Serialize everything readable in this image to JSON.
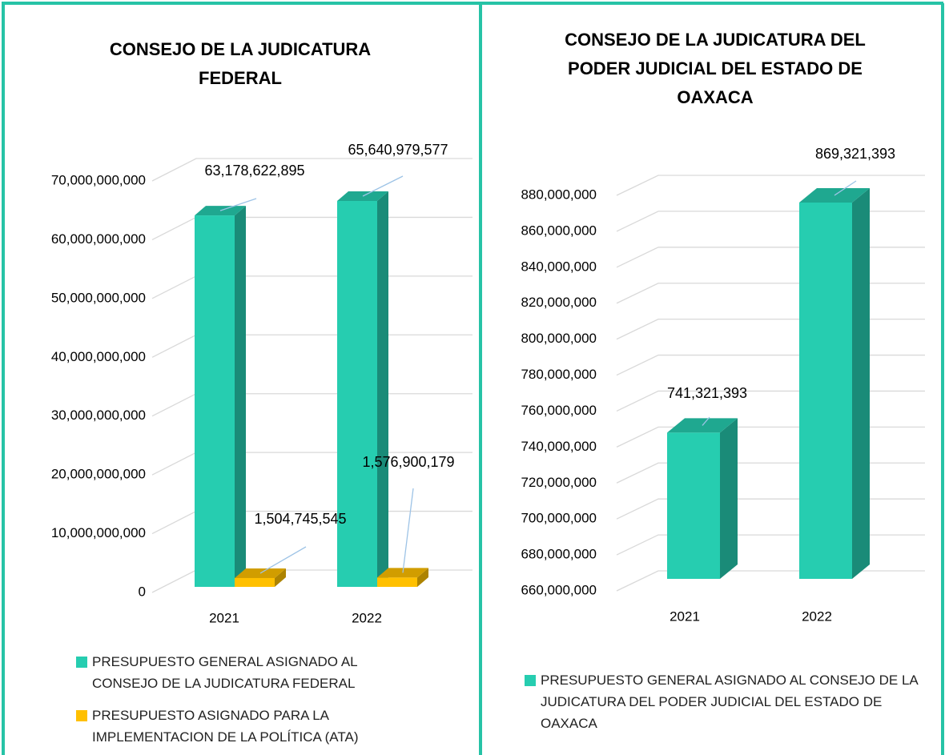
{
  "chart_data": [
    {
      "type": "bar",
      "title": "CONSEJO DE LA JUDICATURA FEDERAL",
      "categories": [
        "2021",
        "2022"
      ],
      "series": [
        {
          "name": "PRESUPUESTO GENERAL ASIGNADO AL CONSEJO DE LA JUDICATURA FEDERAL",
          "color": "#26cdb0",
          "values": [
            63178622895,
            65640979577
          ],
          "value_labels": [
            "63,178,622,895",
            "65,640,979,577"
          ]
        },
        {
          "name": "PRESUPUESTO ASIGNADO PARA LA IMPLEMENTACION DE LA POLÍTICA (ATA)",
          "color": "#ffc000",
          "values": [
            1504745545,
            1576900179
          ],
          "value_labels": [
            "1,504,745,545",
            "1,576,900,179"
          ]
        }
      ],
      "ylim": [
        0,
        70000000000
      ],
      "yticks": [
        0,
        {
          "value": 10000000000,
          "label": "10,000,000,000"
        },
        {
          "value": 20000000000,
          "label": "20,000,000,000"
        },
        {
          "value": 30000000000,
          "label": "30,000,000,000"
        },
        {
          "value": 40000000000,
          "label": "40,000,000,000"
        },
        {
          "value": 50000000000,
          "label": "50,000,000,000"
        },
        {
          "value": 60000000000,
          "label": "60,000,000,000"
        },
        {
          "value": 70000000000,
          "label": "70,000,000,000"
        }
      ],
      "grid": true,
      "legend": "bottom"
    },
    {
      "type": "bar",
      "title": "CONSEJO DE LA JUDICATURA DEL PODER JUDICIAL DEL ESTADO DE OAXACA",
      "categories": [
        "2021",
        "2022"
      ],
      "series": [
        {
          "name": "PRESUPUESTO GENERAL ASIGNADO AL CONSEJO DE LA JUDICATURA DEL PODER JUDICIAL DEL ESTADO DE OAXACA",
          "color": "#26cdb0",
          "values": [
            741321393,
            869321393
          ],
          "value_labels": [
            "741,321,393",
            "869,321,393"
          ]
        }
      ],
      "ylim": [
        660000000,
        880000000
      ],
      "yticks": [
        {
          "value": 660000000,
          "label": "660,000,000"
        },
        {
          "value": 680000000,
          "label": "680,000,000"
        },
        {
          "value": 700000000,
          "label": "700,000,000"
        },
        {
          "value": 720000000,
          "label": "720,000,000"
        },
        {
          "value": 740000000,
          "label": "740,000,000"
        },
        {
          "value": 760000000,
          "label": "760,000,000"
        },
        {
          "value": 780000000,
          "label": "780,000,000"
        },
        {
          "value": 800000000,
          "label": "800,000,000"
        },
        {
          "value": 820000000,
          "label": "820,000,000"
        },
        {
          "value": 840000000,
          "label": "840,000,000"
        },
        {
          "value": 860000000,
          "label": "860,000,000"
        },
        {
          "value": 880000000,
          "label": "880,000,000"
        }
      ],
      "grid": true,
      "legend": "bottom"
    }
  ]
}
